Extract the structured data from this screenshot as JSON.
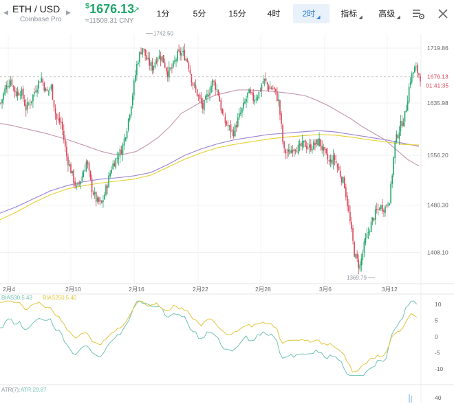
{
  "header": {
    "pair": "ETH / USD",
    "exchange": "Coinbase Pro",
    "price_symbol": "$",
    "price": "1676.13",
    "price_cny": "≈11508.31 CNY",
    "tabs": [
      {
        "label": "1分",
        "active": false
      },
      {
        "label": "5分",
        "active": false
      },
      {
        "label": "15分",
        "active": false
      },
      {
        "label": "4时",
        "active": false
      },
      {
        "label": "2时",
        "active": true,
        "has_menu": true
      },
      {
        "label": "指标",
        "active": false,
        "has_menu": true
      },
      {
        "label": "高级",
        "active": false,
        "has_menu": true
      }
    ],
    "icons": [
      "chart-settings-icon",
      "close-icon"
    ],
    "colors": {
      "up": "#1fa66a",
      "down": "#d9475a",
      "active_tab": "#2f7fd1"
    }
  },
  "chart_data": {
    "type": "candlestick",
    "x_ticks": [
      "2月4",
      "2月10",
      "2月16",
      "2月22",
      "2月28",
      "3月6",
      "3月12"
    ],
    "y_ticks": [
      1719.86,
      1635.98,
      1556.2,
      1480.3,
      1408.1
    ],
    "ylim": [
      1360,
      1760
    ],
    "current_price": "1676.13",
    "countdown": "01:41:35",
    "high_label": "1742.50",
    "low_label": "1369.79",
    "close_path": [
      1636,
      1660,
      1672,
      1650,
      1655,
      1628,
      1640,
      1660,
      1675,
      1652,
      1660,
      1612,
      1605,
      1556,
      1530,
      1505,
      1522,
      1548,
      1506,
      1486,
      1482,
      1510,
      1540,
      1553,
      1566,
      1600,
      1645,
      1698,
      1722,
      1700,
      1690,
      1708,
      1705,
      1682,
      1690,
      1710,
      1712,
      1700,
      1665,
      1648,
      1628,
      1650,
      1670,
      1652,
      1612,
      1600,
      1590,
      1612,
      1630,
      1652,
      1642,
      1650,
      1672,
      1660,
      1658,
      1638,
      1562,
      1560,
      1570,
      1566,
      1574,
      1568,
      1572,
      1578,
      1560,
      1545,
      1552,
      1530,
      1512,
      1460,
      1405,
      1385,
      1422,
      1446,
      1466,
      1478,
      1476,
      1492,
      1575,
      1600,
      1618,
      1672,
      1690,
      1676
    ],
    "moving_averages": {
      "ma_a_color": "#c79ab3",
      "ma_b_color": "#a08ad1",
      "ma_c_color": "#e8d23e",
      "ma_a": [
        1605,
        1602,
        1598,
        1594,
        1590,
        1585,
        1580,
        1574,
        1568,
        1562,
        1558,
        1558,
        1562,
        1572,
        1584,
        1600,
        1620,
        1630,
        1640,
        1648,
        1652,
        1656,
        1656,
        1655,
        1654,
        1652,
        1650,
        1647,
        1640,
        1632,
        1622,
        1612,
        1600,
        1590,
        1580,
        1565,
        1550,
        1540
      ],
      "ma_b": [
        1468,
        1478,
        1490,
        1502,
        1510,
        1516,
        1520,
        1522,
        1525,
        1530,
        1542,
        1556,
        1566,
        1574,
        1580,
        1584,
        1588,
        1590,
        1592,
        1594,
        1592,
        1588,
        1584,
        1580,
        1575,
        1570
      ],
      "ma_c": [
        1458,
        1470,
        1484,
        1496,
        1505,
        1510,
        1514,
        1517,
        1520,
        1526,
        1538,
        1550,
        1560,
        1568,
        1573,
        1577,
        1581,
        1584,
        1586,
        1588,
        1587,
        1584,
        1580,
        1577,
        1573,
        1572
      ]
    },
    "bias_panel": {
      "label_a": "BIAS30:5.43",
      "label_b": "BIAS250:5.40",
      "color_a": "#6fc2b5",
      "color_b": "#e0c63d",
      "y_ticks": [
        10,
        5,
        0,
        -5,
        -10
      ]
    },
    "atr_panel": {
      "label": "ATR(7):",
      "value": "ATR:29.87",
      "y_tick": "40"
    }
  }
}
